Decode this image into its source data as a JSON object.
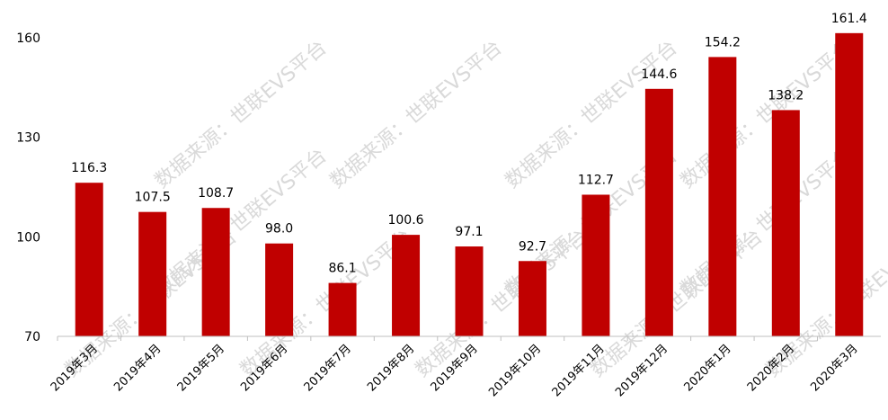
{
  "chart_data": {
    "type": "bar",
    "categories": [
      "2019年3月",
      "2019年4月",
      "2019年5月",
      "2019年6月",
      "2019年7月",
      "2019年8月",
      "2019年9月",
      "2019年10月",
      "2019年11月",
      "2019年12月",
      "2020年1月",
      "2020年2月",
      "2020年3月"
    ],
    "series": [
      {
        "values": [
          116.3,
          107.5,
          108.7,
          98.0,
          86.1,
          100.6,
          97.1,
          92.7,
          112.7,
          144.6,
          154.2,
          138.2,
          161.4
        ]
      }
    ],
    "value_labels": [
      "116.3",
      "107.5",
      "108.7",
      "98.0",
      "86.1",
      "100.6",
      "97.1",
      "92.7",
      "112.7",
      "144.6",
      "154.2",
      "138.2",
      "161.4"
    ],
    "ylim": [
      70,
      160
    ],
    "yticks": [
      70,
      100,
      130,
      160
    ],
    "grid": false,
    "legend": "none",
    "colors": {
      "bar": "#c00000",
      "axis": "#bfbfbf",
      "watermark": "#d9d9d9"
    }
  },
  "watermark": {
    "text": "数据来源：世联EVS平台"
  }
}
